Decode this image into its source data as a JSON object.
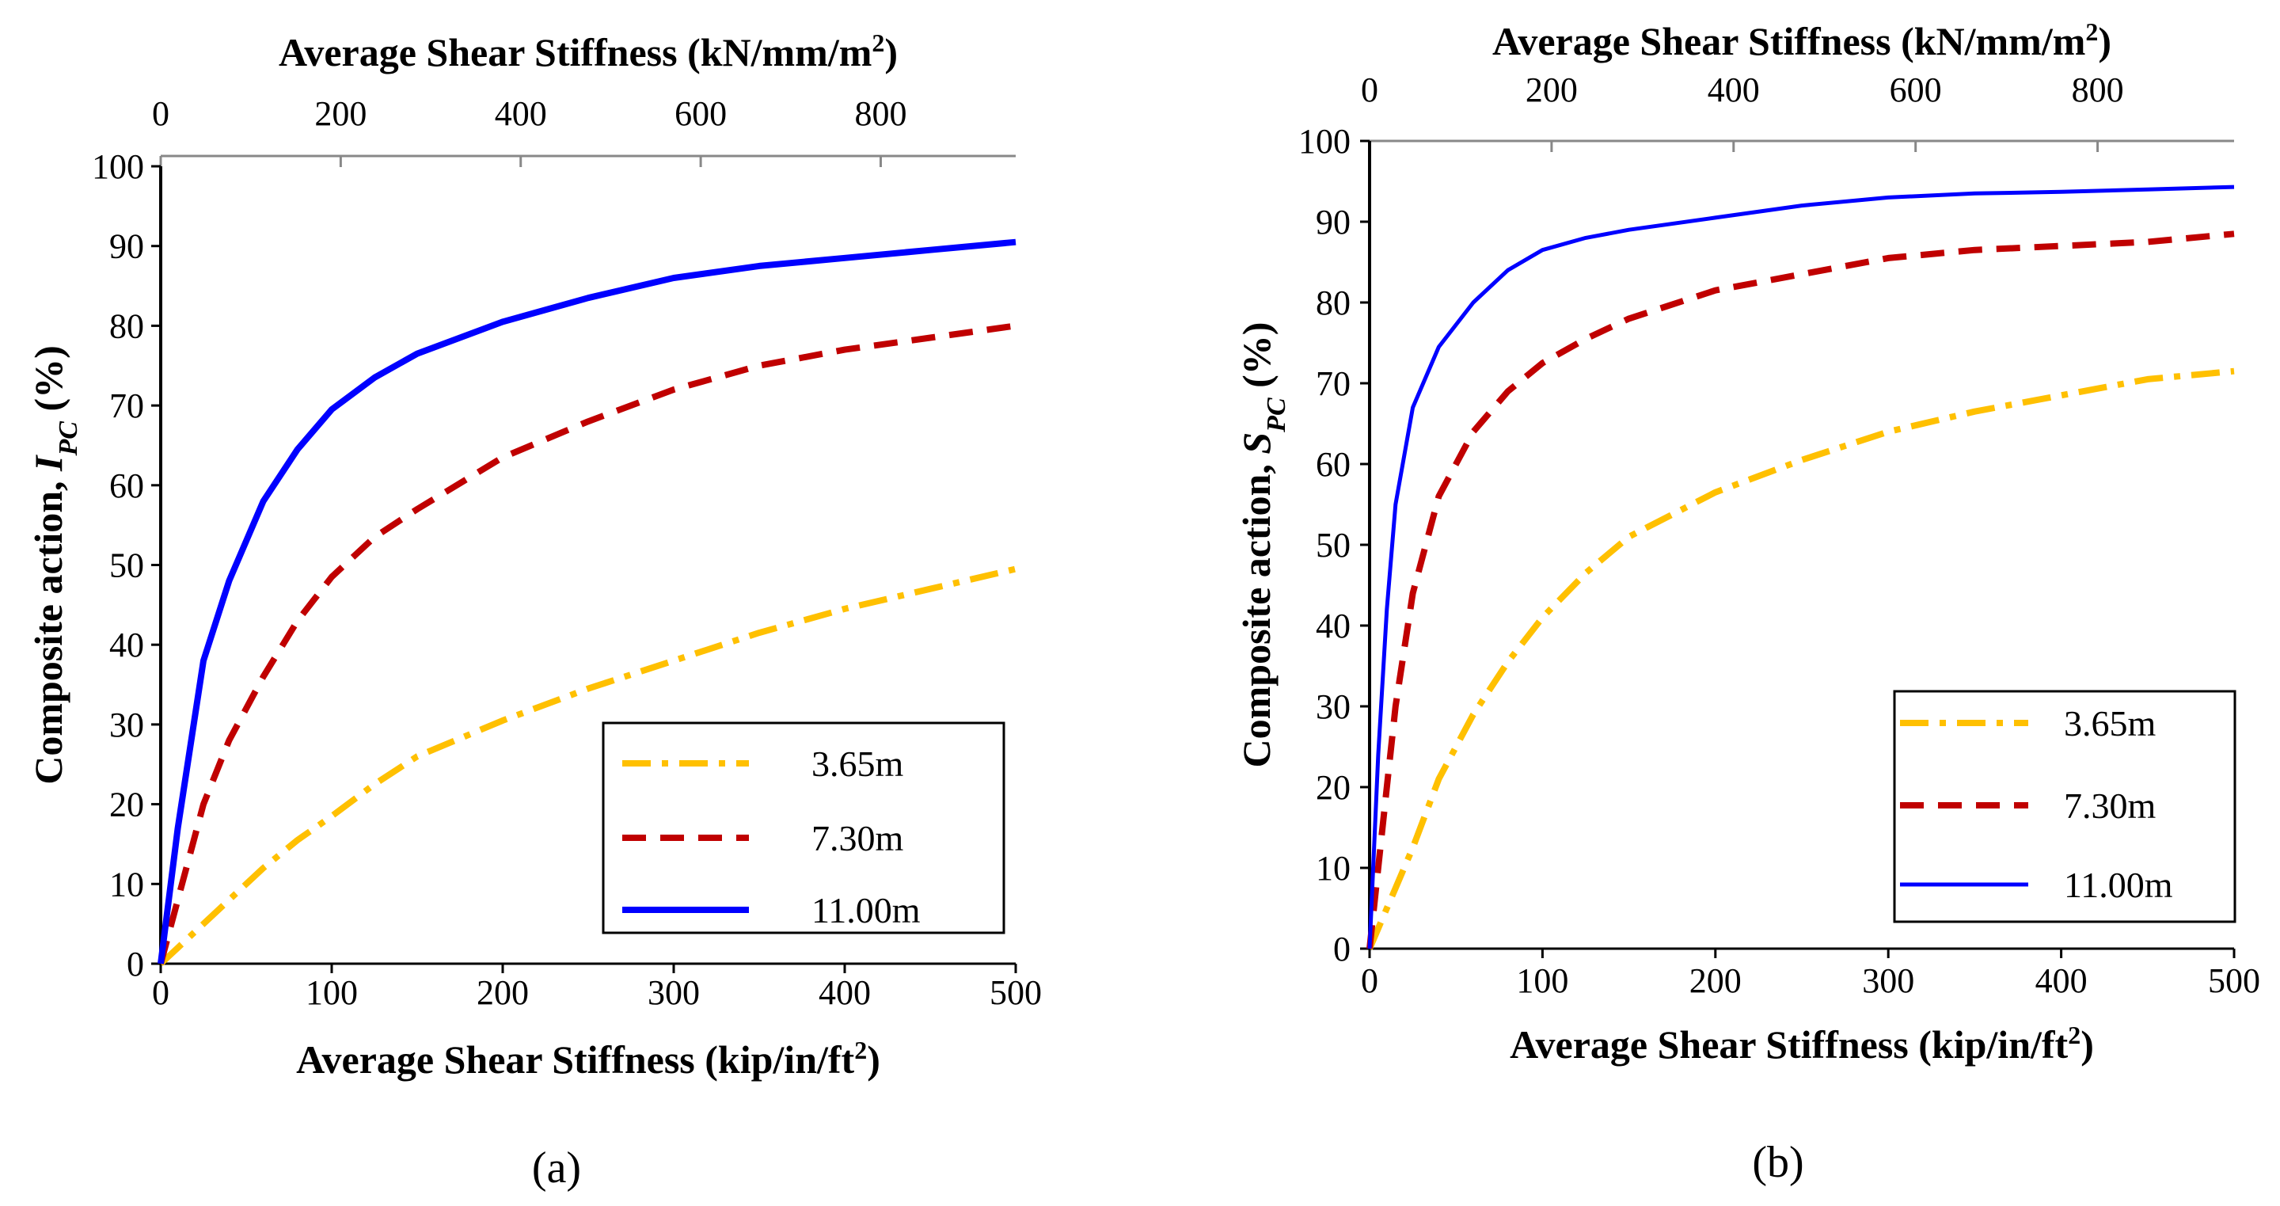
{
  "chart_data": [
    {
      "type": "line",
      "panel_label": "(a)",
      "top_axis": {
        "label_prefix": "Average Shear Stiffness (kN/mm/m",
        "label_sup": "2",
        "label_suffix": ")",
        "range": [
          0,
          950
        ],
        "ticks": [
          "0",
          "200",
          "400",
          "600",
          "800"
        ]
      },
      "x_axis": {
        "label_prefix": "Average Shear Stiffness (kip/in/ft",
        "label_sup": "2",
        "label_suffix": ")",
        "range": [
          0,
          500
        ],
        "ticks": [
          "0",
          "100",
          "200",
          "300",
          "400",
          "500"
        ]
      },
      "y_axis": {
        "label_prefix": "Composite action, ",
        "label_var": "I",
        "label_sub": "PC",
        "label_suffix": " (%)",
        "range": [
          0,
          100
        ],
        "ticks": [
          "0",
          "10",
          "20",
          "30",
          "40",
          "50",
          "60",
          "70",
          "80",
          "90",
          "100"
        ]
      },
      "x": [
        0,
        10,
        25,
        40,
        60,
        80,
        100,
        125,
        150,
        200,
        250,
        300,
        350,
        400,
        450,
        500
      ],
      "series": [
        {
          "name": "3.65m",
          "style": "dashdot",
          "color": "#FFC000",
          "values": [
            0,
            2,
            5,
            8,
            12,
            15.5,
            18.5,
            22.5,
            26,
            30.5,
            34.5,
            38,
            41.5,
            44.5,
            47,
            49.5
          ]
        },
        {
          "name": "7.30m",
          "style": "dashed",
          "color": "#C00000",
          "values": [
            0,
            8,
            20,
            28,
            36,
            43,
            48.5,
            53.5,
            57,
            63.5,
            68,
            72,
            75,
            77,
            78.5,
            80
          ]
        },
        {
          "name": "11.00m",
          "style": "solid",
          "color": "#0000FF",
          "values": [
            0,
            17,
            38,
            48,
            58,
            64.5,
            69.5,
            73.5,
            76.5,
            80.5,
            83.5,
            86,
            87.5,
            88.5,
            89.5,
            90.5
          ]
        }
      ],
      "legend": {
        "position": "bottom-right"
      }
    },
    {
      "type": "line",
      "panel_label": "(b)",
      "top_axis": {
        "label_prefix": "Average Shear Stiffness (kN/mm/m",
        "label_sup": "2",
        "label_suffix": ")",
        "range": [
          0,
          950
        ],
        "ticks": [
          "0",
          "200",
          "400",
          "600",
          "800"
        ]
      },
      "x_axis": {
        "label_prefix": "Average Shear Stiffness (kip/in/ft",
        "label_sup": "2",
        "label_suffix": ")",
        "range": [
          0,
          500
        ],
        "ticks": [
          "0",
          "100",
          "200",
          "300",
          "400",
          "500"
        ]
      },
      "y_axis": {
        "label_prefix": "Composite action, ",
        "label_var": "S",
        "label_sub": "PC",
        "label_suffix": " (%)",
        "range": [
          0,
          100
        ],
        "ticks": [
          "0",
          "10",
          "20",
          "30",
          "40",
          "50",
          "60",
          "70",
          "80",
          "90",
          "100"
        ]
      },
      "x": [
        0,
        5,
        10,
        15,
        25,
        40,
        60,
        80,
        100,
        125,
        150,
        200,
        250,
        300,
        350,
        400,
        450,
        500
      ],
      "series": [
        {
          "name": "3.65m",
          "style": "dashdot",
          "color": "#FFC000",
          "values": [
            0,
            2.5,
            5,
            7.5,
            12.5,
            21,
            29,
            35.5,
            41,
            46.5,
            51,
            56.5,
            60.5,
            64,
            66.5,
            68.5,
            70.5,
            71.5
          ]
        },
        {
          "name": "7.30m",
          "style": "dashed",
          "color": "#C00000",
          "values": [
            0,
            10,
            20,
            30,
            44,
            56,
            64,
            69,
            72.5,
            75.5,
            78,
            81.5,
            83.5,
            85.5,
            86.5,
            87,
            87.5,
            88.5
          ]
        },
        {
          "name": "11.00m",
          "style": "solid",
          "color": "#0000FF",
          "values": [
            0,
            24,
            42,
            55,
            67,
            74.5,
            80,
            84,
            86.5,
            88,
            89,
            90.5,
            92,
            93,
            93.5,
            93.7,
            94,
            94.3
          ]
        }
      ],
      "legend": {
        "position": "bottom-right"
      }
    }
  ]
}
